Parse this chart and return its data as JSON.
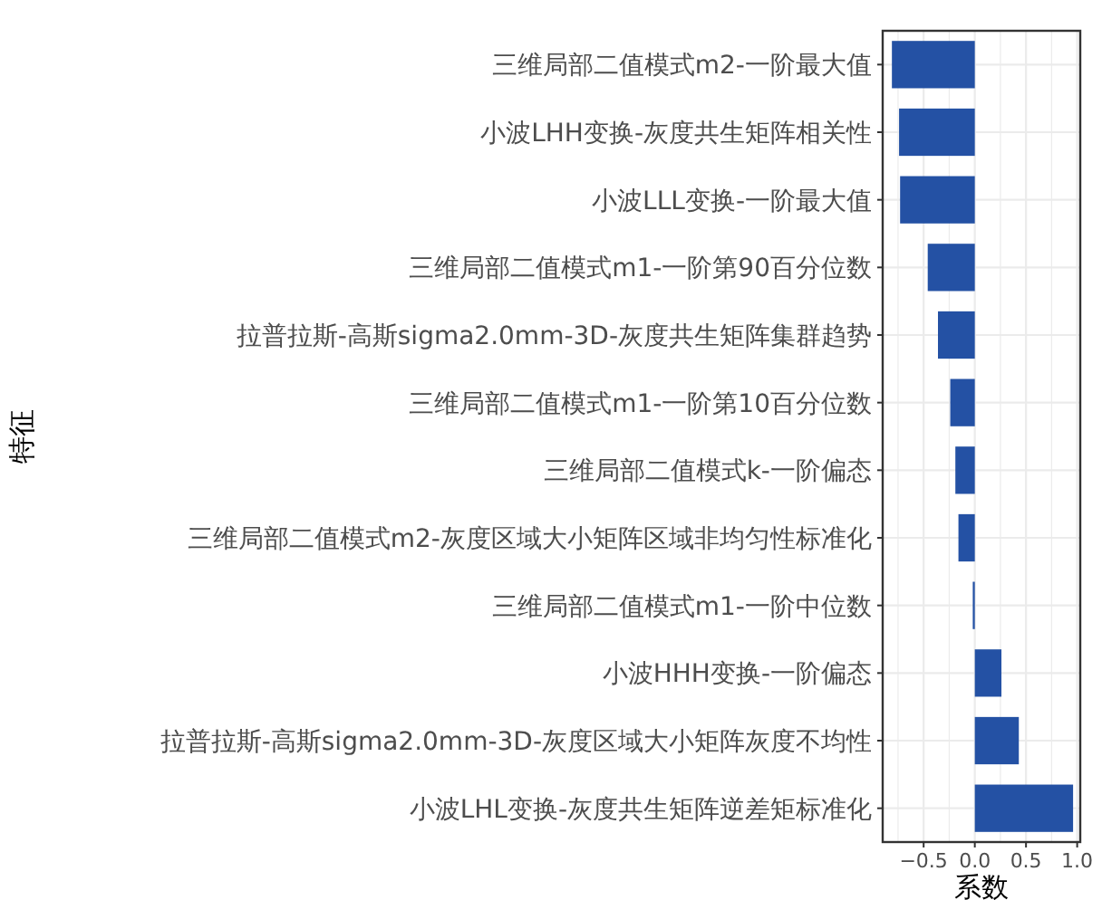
{
  "chart_data": {
    "type": "bar",
    "orientation": "horizontal",
    "xlabel": "系数",
    "ylabel": "特征",
    "categories": [
      "三维局部二值模式m2-一阶最大值",
      "小波LHH变换-灰度共生矩阵相关性",
      "小波LLL变换-一阶最大值",
      "三维局部二值模式m1-一阶第90百分位数",
      "拉普拉斯-高斯sigma2.0mm-3D-灰度共生矩阵集群趋势",
      "三维局部二值模式m1-一阶第10百分位数",
      "三维局部二值模式k-一阶偏态",
      "三维局部二值模式m2-灰度区域大小矩阵区域非均匀性标准化",
      "三维局部二值模式m1-一阶中位数",
      "小波HHH变换-一阶偏态",
      "拉普拉斯-高斯sigma2.0mm-3D-灰度区域大小矩阵灰度不均性",
      "小波LHL变换-灰度共生矩阵逆差矩标准化"
    ],
    "values": [
      -0.81,
      -0.74,
      -0.73,
      -0.46,
      -0.36,
      -0.24,
      -0.19,
      -0.16,
      -0.02,
      0.26,
      0.43,
      0.96
    ],
    "color": "#2451a4",
    "xlim": [
      -0.9,
      1.03
    ],
    "xticks": [
      {
        "value": -0.75,
        "label": null
      },
      {
        "value": -0.5,
        "label": "−0.5"
      },
      {
        "value": -0.25,
        "label": null
      },
      {
        "value": 0,
        "label": "0.0"
      },
      {
        "value": 0.25,
        "label": null
      },
      0.5,
      {
        "value": 0.75,
        "label": null
      },
      {
        "value": 1,
        "label": "1.0"
      }
    ],
    "grid": true
  }
}
